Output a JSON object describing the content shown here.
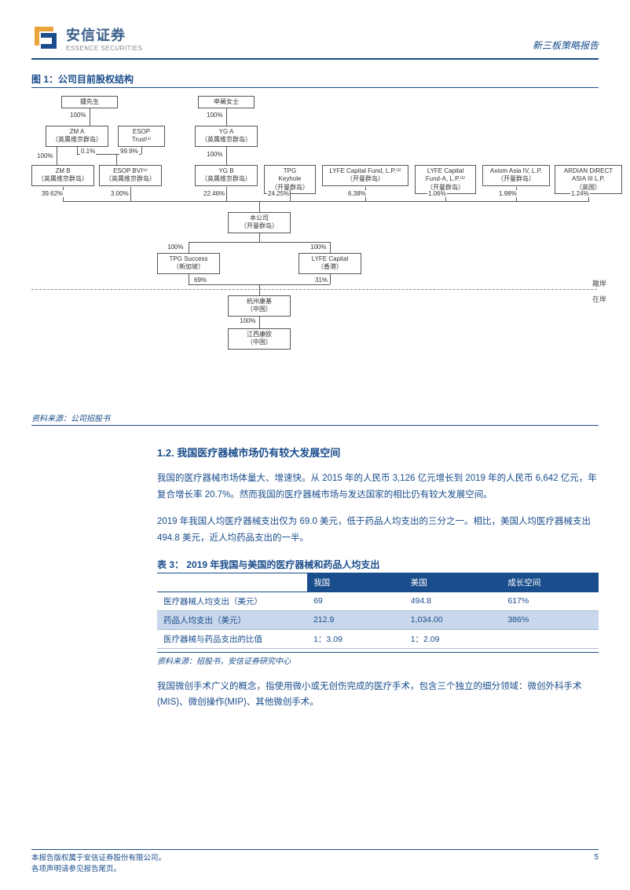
{
  "header": {
    "company_cn": "安信证券",
    "company_en": "ESSENCE SECURITIES",
    "report_type": "新三板策略报告"
  },
  "figure1": {
    "title": "图 1：公司目前股权结构",
    "source": "资料来源：公司招股书",
    "nodes": {
      "zhong": "鍾先生",
      "shentu": "申屠女士",
      "zma": "ZM A\n（英属维京群岛）",
      "esop_trust": "ESOP\nTrust⁽¹⁾",
      "yga": "YG A\n（英属维京群岛）",
      "zmb": "ZM B\n（英属维京群岛）",
      "esop_bvi": "ESOP BVI⁽¹⁾\n（英属维京群岛）",
      "ygb": "YG B\n（英属维京群岛）",
      "tpg_keyhole": "TPG\nKeyhole\n（开曼群岛）",
      "lyfe_fund": "LYFE Capital Fund, L.P.⁽²⁾\n（开曼群岛）",
      "lyfe_fund_a": "LYFE Capital\nFund-A, L.P.⁽²⁾\n（开曼群岛）",
      "axiom": "Axiom Asia IV, L.P.\n（开曼群岛）",
      "ardian": "ARDIAN DIRECT\nASIA III L.P.\n（英国）",
      "company": "本公司\n（开曼群岛）",
      "tpg_success": "TPG Success\n（新加坡）",
      "lyfe_capital": "LYFE Capital\n（香港）",
      "hangzhou": "杭州康基\n（中国）",
      "jiangxi": "江西康欧\n（中国）"
    },
    "pcts": {
      "p100a": "100%",
      "p100b": "100%",
      "p01": "0.1%",
      "p999": "99.9%",
      "p100c": "100%",
      "p100d": "100%",
      "p3962": "39.62%",
      "p300": "3.00%",
      "p2246": "22.46%",
      "p2425": "24.25%",
      "p638": "6.38%",
      "p106": "1.06%",
      "p198": "1.98%",
      "p124": "1.24%",
      "p100e": "100%",
      "p100f": "100%",
      "p69": "69%",
      "p31": "31%",
      "p100g": "100%"
    },
    "side": {
      "offshore": "離岸",
      "onshore": "在岸"
    }
  },
  "section12": {
    "title": "1.2. 我国医疗器械市场仍有较大发展空间",
    "para1": "我国的医疗器械市场体量大、增速快。从 2015 年的人民币 3,126 亿元增长到 2019 年的人民币 6,642 亿元，年复合增长率 20.7%。然而我国的医疗器械市场与发达国家的相比仍有较大发展空间。",
    "para2": "2019 年我国人均医疗器械支出仅为 69.0 美元，低于药品人均支出的三分之一。相比，美国人均医疗器械支出 494.8 美元，近人均药品支出的一半。",
    "para3": "我国微创手术广义的概念，指使用微小或无创伤完成的医疗手术，包含三个独立的细分领域：微创外科手术(MIS)、微创操作(MIP)、其他微创手术。"
  },
  "table3": {
    "title": "表 3：  2019 年我国与美国的医疗器械和药品人均支出",
    "headers": [
      "",
      "我国",
      "美国",
      "成长空间"
    ],
    "rows": [
      [
        "医疗器械人均支出（美元）",
        "69",
        "494.8",
        "617%"
      ],
      [
        "药品人均支出（美元）",
        "212.9",
        "1,034.00",
        "386%"
      ],
      [
        "医疗器械与药品支出的比值",
        "1：3.09",
        "1：2.09",
        ""
      ]
    ],
    "source": "资料来源：招股书，安信证券研究中心"
  },
  "footer": {
    "line1": "本报告版权属于安信证券股份有限公司。",
    "line2": "各项声明请参见报告尾页。",
    "page": "5"
  },
  "colors": {
    "brand_blue": "#1a4d8c",
    "brand_orange": "#e8a33d",
    "row_hl": "#c8d7eb"
  }
}
